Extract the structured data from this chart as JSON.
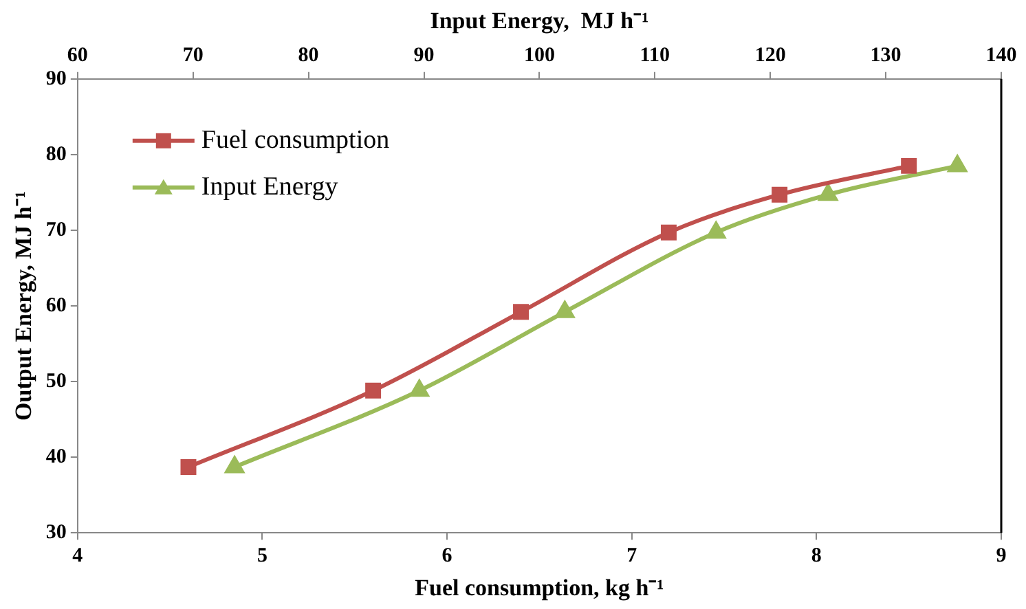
{
  "chart_data": {
    "type": "line",
    "xlabel": "Fuel consumption, kg h⁻¹",
    "x2label": "Input Energy,  MJ h⁻¹",
    "ylabel": "Output Energy, MJ h⁻¹",
    "xlim": [
      4,
      9
    ],
    "xticks": [
      4,
      5,
      6,
      7,
      8,
      9
    ],
    "x2lim": [
      60,
      140
    ],
    "x2ticks": [
      60,
      70,
      80,
      90,
      100,
      110,
      120,
      130,
      140
    ],
    "ylim": [
      30,
      90
    ],
    "yticks": [
      30,
      40,
      50,
      60,
      70,
      80,
      90
    ],
    "grid": false,
    "legend": "top left",
    "line_style": "solid",
    "series": [
      {
        "name": "Fuel consumption",
        "color": "#c0504d",
        "marker": "square",
        "x": [
          4.6,
          5.6,
          6.4,
          7.2,
          7.8,
          8.5
        ],
        "values": [
          38.7,
          48.8,
          59.2,
          69.7,
          74.7,
          78.5
        ]
      },
      {
        "name": "Input Energy",
        "color": "#9bbb59",
        "marker": "triangle",
        "axis": "x2",
        "x": [
          73.6,
          89.6,
          102.2,
          115.3,
          125,
          136.2
        ],
        "values": [
          38.7,
          48.8,
          59.2,
          69.7,
          74.7,
          78.5
        ]
      }
    ]
  }
}
